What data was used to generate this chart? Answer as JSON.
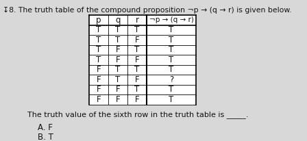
{
  "title": "↧8. The truth table of the compound proposition ¬p → (q → r) is given below.",
  "headers": [
    "p",
    "q",
    "r",
    "¬p → (q → r)"
  ],
  "rows": [
    [
      "T",
      "T",
      "T",
      "T"
    ],
    [
      "T",
      "T",
      "F",
      "T"
    ],
    [
      "T",
      "F",
      "T",
      "T"
    ],
    [
      "T",
      "F",
      "F",
      "T"
    ],
    [
      "F",
      "T",
      "T",
      "T"
    ],
    [
      "F",
      "T",
      "F",
      "?"
    ],
    [
      "F",
      "F",
      "T",
      "T"
    ],
    [
      "F",
      "F",
      "F",
      "T"
    ]
  ],
  "footer": "The truth value of the sixth row in the truth table is _____.",
  "options": [
    "A. F",
    "B. T"
  ],
  "bg_color": "#d8d8d8",
  "text_color": "#111111",
  "title_fontsize": 7.8,
  "cell_fontsize": 8.5,
  "header_formula_fontsize": 7.5,
  "footer_fontsize": 8.0,
  "options_fontsize": 8.5
}
